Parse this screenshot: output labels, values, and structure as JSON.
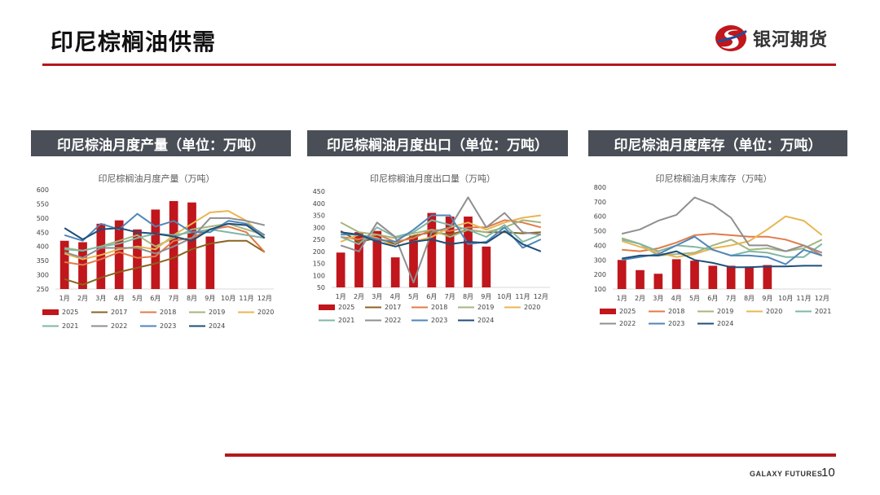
{
  "page": {
    "title": "印尼棕榈油供需",
    "brand": "银河期货",
    "footer_brand": "GALAXY FUTURES",
    "page_number": "10"
  },
  "colors": {
    "accent": "#b3191d",
    "header_bg": "#4a4f57",
    "series": {
      "2025": "#c0161c",
      "2017": "#8a6420",
      "2018": "#e07b4a",
      "2019": "#a5b57e",
      "2020": "#e9b552",
      "2021": "#7fb7a5",
      "2022": "#8f8f8f",
      "2023": "#4f86b8",
      "2024": "#1f4e79"
    }
  },
  "sections": [
    {
      "header": "印尼棕油月度产量（单位：万吨）"
    },
    {
      "header": "印尼棕榈油月度出口（单位：万吨）"
    },
    {
      "header": "印尼棕油月度库存（单位：万吨）"
    }
  ],
  "chart_data": [
    {
      "type": "bar",
      "title": "印尼棕榈油月度产量（万吨）",
      "categories": [
        "1月",
        "2月",
        "3月",
        "4月",
        "5月",
        "6月",
        "7月",
        "8月",
        "9月",
        "10月",
        "11月",
        "12月"
      ],
      "ylim": [
        250,
        600
      ],
      "yticks": [
        250,
        300,
        350,
        400,
        450,
        500,
        550,
        600
      ],
      "legend_position": "bottom",
      "bar_series": {
        "name": "2025",
        "values": [
          420,
          415,
          480,
          492,
          460,
          530,
          560,
          555,
          435,
          null,
          null,
          null
        ]
      },
      "line_series": [
        {
          "name": "2017",
          "values": [
            285,
            265,
            290,
            310,
            325,
            340,
            360,
            390,
            410,
            420,
            420,
            380
          ]
        },
        {
          "name": "2018",
          "values": [
            345,
            335,
            355,
            380,
            360,
            365,
            420,
            430,
            460,
            470,
            450,
            380
          ]
        },
        {
          "name": "2019",
          "values": [
            395,
            385,
            400,
            420,
            440,
            400,
            430,
            460,
            470,
            480,
            460,
            440
          ]
        },
        {
          "name": "2020",
          "values": [
            375,
            355,
            370,
            390,
            400,
            390,
            440,
            480,
            520,
            525,
            490,
            430
          ]
        },
        {
          "name": "2021",
          "values": [
            390,
            385,
            400,
            410,
            430,
            445,
            440,
            450,
            460,
            450,
            440,
            430
          ]
        },
        {
          "name": "2022",
          "values": [
            380,
            360,
            395,
            395,
            395,
            375,
            400,
            430,
            500,
            500,
            490,
            475
          ]
        },
        {
          "name": "2023",
          "values": [
            440,
            420,
            480,
            460,
            515,
            470,
            490,
            450,
            450,
            490,
            480,
            440
          ]
        },
        {
          "name": "2024",
          "values": [
            465,
            425,
            460,
            465,
            450,
            445,
            435,
            420,
            460,
            480,
            475,
            430
          ]
        }
      ]
    },
    {
      "type": "bar",
      "title": "印尼棕榈油月度出口量（万吨）",
      "categories": [
        "1月",
        "2月",
        "3月",
        "4月",
        "5月",
        "6月",
        "7月",
        "8月",
        "9月",
        "10月",
        "11月",
        "12月"
      ],
      "ylim": [
        50,
        450
      ],
      "yticks": [
        50,
        100,
        150,
        200,
        250,
        300,
        350,
        400,
        450
      ],
      "legend_position": "bottom",
      "bar_series": {
        "name": "2025",
        "values": [
          195,
          280,
          285,
          175,
          265,
          360,
          345,
          345,
          220,
          null,
          null,
          null
        ]
      },
      "line_series": [
        {
          "name": "2017",
          "values": [
            285,
            240,
            255,
            230,
            265,
            280,
            270,
            290,
            280,
            280,
            275,
            280
          ]
        },
        {
          "name": "2018",
          "values": [
            260,
            250,
            270,
            240,
            255,
            290,
            285,
            300,
            300,
            330,
            320,
            300
          ]
        },
        {
          "name": "2019",
          "values": [
            320,
            280,
            270,
            255,
            275,
            290,
            260,
            290,
            280,
            300,
            330,
            320
          ]
        },
        {
          "name": "2020",
          "values": [
            240,
            270,
            255,
            220,
            240,
            260,
            300,
            320,
            290,
            320,
            340,
            350
          ]
        },
        {
          "name": "2021",
          "values": [
            260,
            230,
            300,
            260,
            280,
            330,
            310,
            290,
            260,
            310,
            240,
            270
          ]
        },
        {
          "name": "2022",
          "values": [
            225,
            200,
            320,
            260,
            70,
            280,
            300,
            425,
            300,
            360,
            280,
            270
          ]
        },
        {
          "name": "2023",
          "values": [
            270,
            270,
            250,
            240,
            290,
            350,
            350,
            230,
            240,
            300,
            215,
            250
          ]
        },
        {
          "name": "2024",
          "values": [
            280,
            270,
            240,
            220,
            240,
            250,
            230,
            240,
            235,
            285,
            230,
            200
          ]
        }
      ]
    },
    {
      "type": "bar",
      "title": "印尼棕榈油月末库存（万吨）",
      "categories": [
        "1月",
        "2月",
        "3月",
        "4月",
        "5月",
        "6月",
        "7月",
        "8月",
        "9月",
        "10月",
        "11月",
        "12月"
      ],
      "ylim": [
        100,
        800
      ],
      "yticks": [
        100,
        200,
        300,
        400,
        500,
        600,
        700,
        800
      ],
      "legend_position": "bottom",
      "bar_series": {
        "name": "2025",
        "values": [
          300,
          230,
          205,
          305,
          295,
          260,
          260,
          255,
          265,
          null,
          null,
          null
        ]
      },
      "line_series": [
        {
          "name": "2018",
          "values": [
            370,
            360,
            380,
            420,
            470,
            480,
            470,
            460,
            460,
            440,
            400,
            330
          ]
        },
        {
          "name": "2019",
          "values": [
            450,
            410,
            330,
            340,
            350,
            400,
            440,
            370,
            380,
            360,
            380,
            440
          ]
        },
        {
          "name": "2020",
          "values": [
            430,
            390,
            350,
            320,
            340,
            380,
            400,
            430,
            510,
            600,
            570,
            470
          ]
        },
        {
          "name": "2021",
          "values": [
            440,
            410,
            360,
            400,
            390,
            370,
            330,
            360,
            350,
            320,
            320,
            410
          ]
        },
        {
          "name": "2022",
          "values": [
            480,
            510,
            570,
            610,
            730,
            680,
            590,
            400,
            400,
            360,
            400,
            350
          ]
        },
        {
          "name": "2023",
          "values": [
            300,
            320,
            340,
            400,
            460,
            370,
            330,
            330,
            320,
            270,
            370,
            330
          ]
        },
        {
          "name": "2024",
          "values": [
            310,
            330,
            330,
            360,
            300,
            280,
            250,
            250,
            255,
            255,
            260,
            260
          ]
        }
      ]
    }
  ]
}
